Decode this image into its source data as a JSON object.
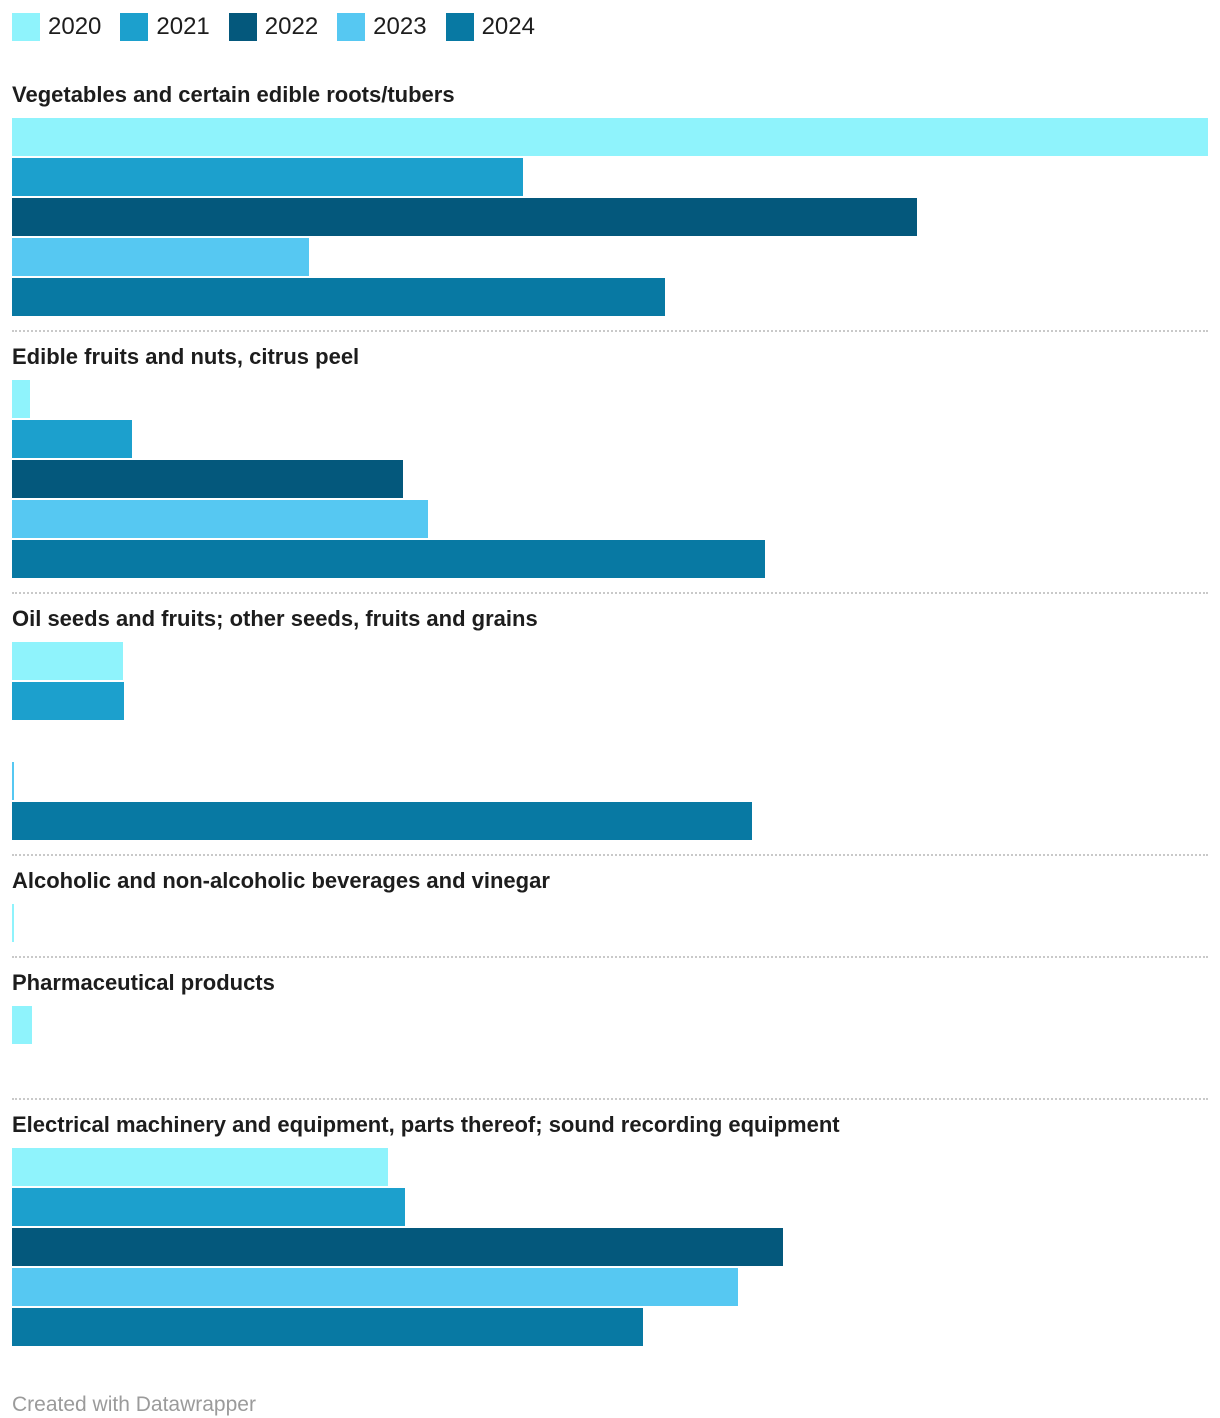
{
  "legend": {
    "items": [
      {
        "label": "2020",
        "color": "#8ff3fc"
      },
      {
        "label": "2021",
        "color": "#1ca0cd"
      },
      {
        "label": "2022",
        "color": "#04587c"
      },
      {
        "label": "2023",
        "color": "#56c8f2"
      },
      {
        "label": "2024",
        "color": "#0879a3"
      }
    ]
  },
  "chart_data": {
    "type": "bar",
    "orientation": "horizontal",
    "title": "",
    "xlabel": "",
    "ylabel": "",
    "unit": "relative bar length, longest bar (Vegetables 2020) = 100; no axis or value labels shown",
    "axis_visible": false,
    "grid": false,
    "legend_position": "top-left",
    "series_years": [
      "2020",
      "2021",
      "2022",
      "2023",
      "2024"
    ],
    "groups": [
      {
        "label": "Vegetables and certain edible roots/tubers",
        "bars": [
          {
            "year": "2020",
            "value": 100
          },
          {
            "year": "2021",
            "value": 42.7
          },
          {
            "year": "2022",
            "value": 75.7
          },
          {
            "year": "2023",
            "value": 24.8
          },
          {
            "year": "2024",
            "value": 54.6
          }
        ]
      },
      {
        "label": "Edible fruits and nuts, citrus peel",
        "bars": [
          {
            "year": "2020",
            "value": 1.5
          },
          {
            "year": "2021",
            "value": 10.0
          },
          {
            "year": "2022",
            "value": 32.7
          },
          {
            "year": "2023",
            "value": 34.8
          },
          {
            "year": "2024",
            "value": 63.0
          }
        ]
      },
      {
        "label": "Oil seeds and fruits; other seeds, fruits and grains",
        "bars": [
          {
            "year": "2020",
            "value": 9.3
          },
          {
            "year": "2021",
            "value": 9.4
          },
          {
            "year": "2022",
            "value": 0
          },
          {
            "year": "2023",
            "value": 0.15
          },
          {
            "year": "2024",
            "value": 61.9
          }
        ]
      },
      {
        "label": "Alcoholic and non-alcoholic beverages and vinegar",
        "bars": [
          {
            "year": "2020",
            "value": 0.2
          }
        ]
      },
      {
        "label": "Pharmaceutical products",
        "bars": [
          {
            "year": "2020",
            "value": 1.7
          },
          {
            "year": "2021",
            "value": 0
          }
        ]
      },
      {
        "label": "Electrical machinery and equipment, parts thereof; sound recording equipment",
        "bars": [
          {
            "year": "2020",
            "value": 31.4
          },
          {
            "year": "2021",
            "value": 32.9
          },
          {
            "year": "2022",
            "value": 64.5
          },
          {
            "year": "2023",
            "value": 60.7
          },
          {
            "year": "2024",
            "value": 52.8
          }
        ]
      }
    ]
  },
  "footer": {
    "credit": "Created with Datawrapper"
  }
}
